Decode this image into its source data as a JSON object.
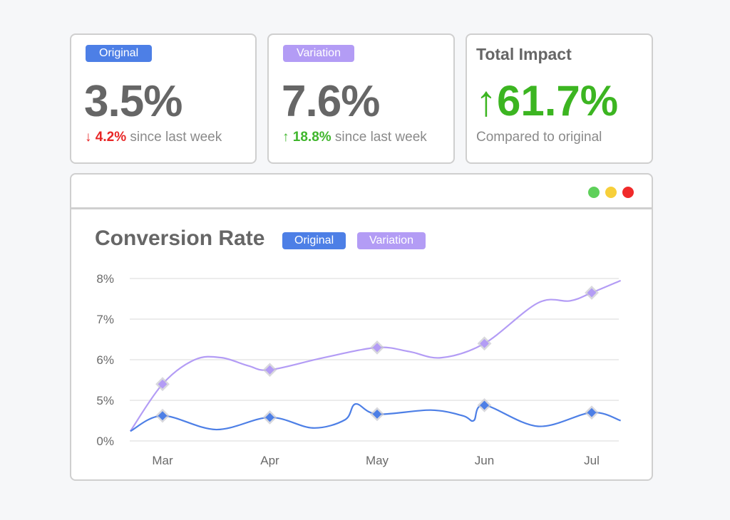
{
  "stats": [
    {
      "badge": "Original",
      "value": "3.5%",
      "change_arrow": "↓",
      "change": "4.2%",
      "change_dir": "down",
      "suffix": " since last week"
    },
    {
      "badge": "Variation",
      "value": "7.6%",
      "change_arrow": "↑",
      "change": "18.8%",
      "change_dir": "up",
      "suffix": " since last week"
    }
  ],
  "impact": {
    "title": "Total Impact",
    "arrow": "↑",
    "value": "61.7%",
    "caption": "Compared to original"
  },
  "window_controls": [
    "green-dot",
    "yellow-dot",
    "red-dot"
  ],
  "colors": {
    "original": "#4d7fe6",
    "variation": "#b39cf5",
    "up": "#3cb521",
    "down": "#e82626"
  },
  "chart_data": {
    "type": "line",
    "title": "Conversion Rate",
    "legend": [
      "Original",
      "Variation"
    ],
    "legend_placement": "top-left",
    "categories": [
      "Mar",
      "Apr",
      "May",
      "Jun",
      "Jul"
    ],
    "yticks": [
      "0%",
      "5%",
      "6%",
      "7%",
      "8%"
    ],
    "ytick_values": [
      0,
      5,
      6,
      7,
      8
    ],
    "ylim": [
      0,
      8
    ],
    "grid": true,
    "series": [
      {
        "name": "Variation",
        "color": "#b39cf5",
        "values": [
          5.4,
          5.75,
          6.3,
          6.4,
          7.65
        ],
        "curve": [
          [
            -0.3,
            1.2
          ],
          [
            0,
            5.4
          ],
          [
            0.3,
            6.0
          ],
          [
            0.55,
            6.05
          ],
          [
            0.8,
            5.85
          ],
          [
            1,
            5.75
          ],
          [
            1.5,
            6.05
          ],
          [
            2,
            6.3
          ],
          [
            2.3,
            6.2
          ],
          [
            2.6,
            6.05
          ],
          [
            3,
            6.4
          ],
          [
            3.5,
            7.4
          ],
          [
            3.8,
            7.45
          ],
          [
            4,
            7.65
          ],
          [
            4.27,
            7.95
          ]
        ]
      },
      {
        "name": "Original",
        "color": "#4d7fe6",
        "values": [
          3.1,
          2.9,
          3.3,
          4.4,
          3.5
        ],
        "curve": [
          [
            -0.3,
            1.2
          ],
          [
            0,
            3.1
          ],
          [
            0.5,
            1.4
          ],
          [
            1,
            2.9
          ],
          [
            1.4,
            1.6
          ],
          [
            1.7,
            2.6
          ],
          [
            1.8,
            4.55
          ],
          [
            2,
            3.3
          ],
          [
            2.5,
            3.8
          ],
          [
            2.8,
            3.1
          ],
          [
            2.9,
            2.5
          ],
          [
            3,
            4.4
          ],
          [
            3.5,
            1.8
          ],
          [
            4,
            3.5
          ],
          [
            4.27,
            2.5
          ]
        ]
      }
    ]
  }
}
